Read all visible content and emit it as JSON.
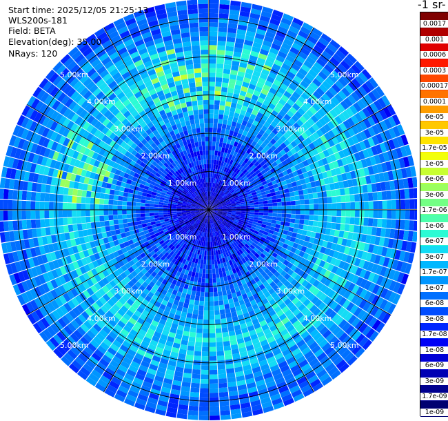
{
  "header": {
    "start_time": "Start time: 2025/12/05 21:25:13",
    "instrument": "WLS200s-181",
    "field": "Field: BETA",
    "elevation": "Elevation(deg): 35.00",
    "nrays": "NRays: 120"
  },
  "colorbar": {
    "title": "-1 sr-",
    "labels": [
      "0.0017",
      "0.001",
      "0.0006",
      "0.0003",
      "0.00017",
      "0.0001",
      "6e-05",
      "3e-05",
      "1.7e-05",
      "1e-05",
      "6e-06",
      "3e-06",
      "1.7e-06",
      "1e-06",
      "6e-07",
      "3e-07",
      "1.7e-07",
      "1e-07",
      "6e-08",
      "3e-08",
      "1.7e-08",
      "1e-08",
      "6e-09",
      "3e-09",
      "1.7e-09",
      "1e-09"
    ],
    "colors": [
      "#7f0000",
      "#b00000",
      "#e00000",
      "#ff1a00",
      "#ff4800",
      "#ff7300",
      "#ff9e00",
      "#ffc800",
      "#ffe400",
      "#f2ff0a",
      "#c8ff30",
      "#9bff5e",
      "#73ff84",
      "#4cffad",
      "#2bfbd4",
      "#14dcf5",
      "#00b8ff",
      "#0096ff",
      "#0070ff",
      "#004cff",
      "#0026ff",
      "#0000f5",
      "#0000d6",
      "#0000b3",
      "#00008f",
      "#000070"
    ]
  },
  "chart_data": {
    "type": "heatmap",
    "projection": "polar PPI",
    "title": "",
    "field": "BETA",
    "elevation_deg": 35.0,
    "n_rays": 120,
    "range_rings_km": [
      1,
      2,
      3,
      4,
      5
    ],
    "ring_labels": [
      "1.00km",
      "2.00km",
      "3.00km",
      "4.00km",
      "5.00km"
    ],
    "spoke_angles_deg": [
      0,
      30,
      60,
      90,
      120,
      150,
      180,
      210,
      240,
      270,
      300,
      330
    ],
    "max_range_km": 5.5,
    "beta_radial_profile": [
      {
        "range_km": 0.2,
        "beta": 5e-09
      },
      {
        "range_km": 1.0,
        "beta": 1.7e-08
      },
      {
        "range_km": 1.8,
        "beta": 4e-08
      },
      {
        "range_km": 2.5,
        "beta": 1e-07
      },
      {
        "range_km": 3.5,
        "beta": 3e-07
      },
      {
        "range_km": 4.5,
        "beta": 1.2e-07
      },
      {
        "range_km": 5.3,
        "beta": 4e-08
      }
    ],
    "colorbar_range": [
      1e-09,
      0.0017
    ],
    "colorscale": "log"
  }
}
